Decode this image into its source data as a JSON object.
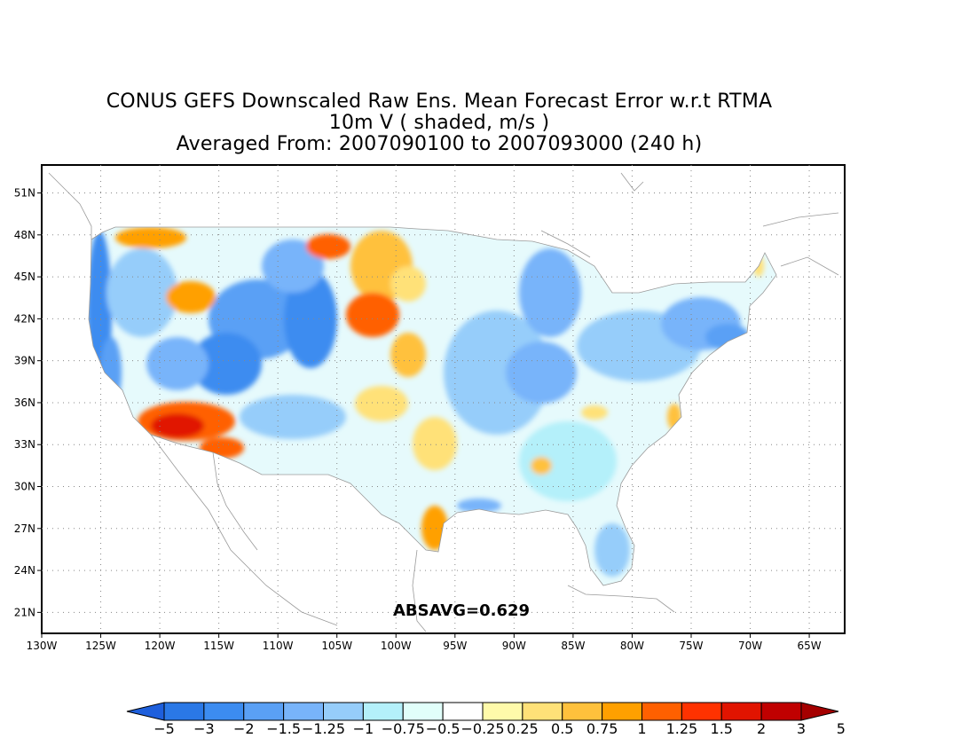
{
  "title": {
    "line1": "CONUS GEFS Downscaled Raw Ens. Mean Forecast Error w.r.t RTMA",
    "line2": "10m V ( shaded, m/s )",
    "line3": "Averaged From: 2007090100 to 2007093000 (240 h)"
  },
  "map": {
    "lon_range": [
      -130,
      -62
    ],
    "lat_range": [
      19.5,
      53
    ],
    "lon_ticks": [
      "130W",
      "125W",
      "120W",
      "115W",
      "110W",
      "105W",
      "100W",
      "95W",
      "90W",
      "85W",
      "80W",
      "75W",
      "70W",
      "65W"
    ],
    "lat_ticks": [
      "21N",
      "24N",
      "27N",
      "30N",
      "33N",
      "36N",
      "39N",
      "42N",
      "45N",
      "48N",
      "51N"
    ],
    "grid": true,
    "stat_label": "ABSAVG=0.629"
  },
  "colorbar": {
    "labels": [
      "−5",
      "−3",
      "−2",
      "−1.5",
      "−1.25",
      "−1",
      "−0.75",
      "−0.5",
      "−0.25",
      "0.25",
      "0.5",
      "0.75",
      "1",
      "1.25",
      "1.5",
      "2",
      "3",
      "5"
    ],
    "colors": [
      "#1e5fdc",
      "#2a78e6",
      "#3c8cf0",
      "#5aa0f5",
      "#78b4fa",
      "#96cdfa",
      "#b4f0fa",
      "#e1fffa",
      "#ffffff",
      "#fffaaa",
      "#ffe178",
      "#ffc13c",
      "#ffa000",
      "#ff6000",
      "#ff3200",
      "#e11400",
      "#c00000",
      "#a50000"
    ]
  },
  "colors": {
    "map_land_neutral": "#e8f8fa",
    "frame": "#000000"
  }
}
